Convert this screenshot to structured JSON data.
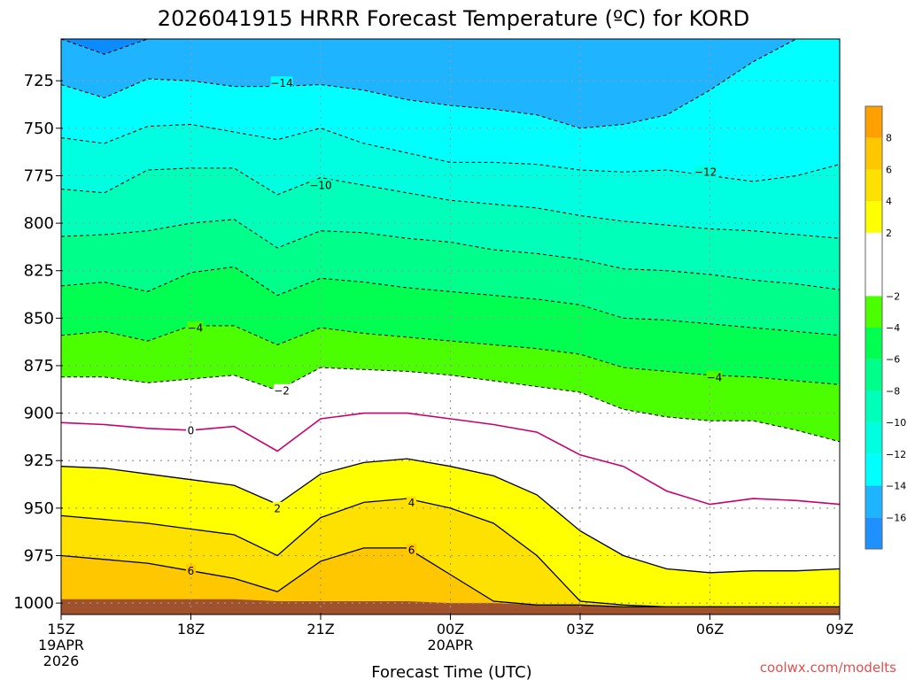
{
  "chart_data": {
    "type": "contour",
    "title": "2026041915 HRRR Forecast Temperature (ºC) for KORD",
    "xlabel": "Forecast Time (UTC)",
    "credit": "coolwx.com/modelts",
    "y_ticks": [
      "725",
      "750",
      "775",
      "800",
      "825",
      "850",
      "875",
      "900",
      "925",
      "950",
      "975",
      "1000"
    ],
    "y_values": [
      725,
      750,
      775,
      800,
      825,
      850,
      875,
      900,
      925,
      950,
      975,
      1000
    ],
    "ylim": [
      1006,
      703
    ],
    "x_ticks": [
      {
        "hour": 0,
        "lines": [
          "15Z",
          "19APR",
          "2026"
        ]
      },
      {
        "hour": 3,
        "lines": [
          "18Z"
        ]
      },
      {
        "hour": 6,
        "lines": [
          "21Z"
        ]
      },
      {
        "hour": 9,
        "lines": [
          "00Z",
          "20APR"
        ]
      },
      {
        "hour": 12,
        "lines": [
          "03Z"
        ]
      },
      {
        "hour": 15,
        "lines": [
          "06Z"
        ]
      },
      {
        "hour": 18,
        "lines": [
          "09Z"
        ]
      }
    ],
    "xlim": [
      0,
      18
    ],
    "x_hours": [
      0,
      1,
      2,
      3,
      4,
      5,
      6,
      7,
      8,
      9,
      10,
      11,
      12,
      13,
      14,
      15,
      16,
      17,
      18
    ],
    "ground_pressure": [
      998,
      998,
      998,
      998,
      998,
      999,
      999,
      999,
      999,
      1000,
      1000,
      1001,
      1001,
      1002,
      1002,
      1002,
      1002,
      1002,
      1002
    ],
    "isotherms": [
      {
        "value": -16,
        "p": [
          703,
          711,
          703,
          703,
          703,
          703,
          703,
          703,
          703,
          703,
          703,
          703,
          703,
          703,
          703,
          703,
          703,
          703,
          703
        ]
      },
      {
        "value": -14,
        "p": [
          727,
          734,
          724,
          725,
          728,
          728,
          727,
          730,
          735,
          738,
          740,
          743,
          750,
          748,
          743,
          730,
          715,
          703,
          703
        ]
      },
      {
        "value": -12,
        "p": [
          755,
          758,
          749,
          748,
          752,
          756,
          750,
          758,
          763,
          768,
          768,
          769,
          772,
          773,
          772,
          775,
          778,
          775,
          769
        ]
      },
      {
        "value": -10,
        "p": [
          782,
          784,
          772,
          771,
          771,
          785,
          776,
          780,
          784,
          788,
          790,
          792,
          796,
          799,
          801,
          803,
          804,
          806,
          808
        ]
      },
      {
        "value": -8,
        "p": [
          807,
          806,
          804,
          800,
          798,
          813,
          804,
          805,
          808,
          810,
          814,
          816,
          819,
          824,
          825,
          827,
          830,
          832,
          835
        ]
      },
      {
        "value": -6,
        "p": [
          833,
          831,
          836,
          826,
          823,
          838,
          829,
          831,
          834,
          836,
          838,
          840,
          843,
          850,
          851,
          853,
          855,
          857,
          859
        ]
      },
      {
        "value": -4,
        "p": [
          859,
          857,
          862,
          854,
          854,
          864,
          855,
          858,
          860,
          862,
          864,
          866,
          869,
          876,
          878,
          880,
          881,
          883,
          885
        ]
      },
      {
        "value": -2,
        "p": [
          881,
          881,
          884,
          882,
          880,
          888,
          876,
          877,
          878,
          880,
          883,
          886,
          889,
          898,
          902,
          904,
          904,
          909,
          915
        ]
      },
      {
        "value": 0,
        "p": [
          905,
          906,
          908,
          909,
          907,
          920,
          903,
          900,
          900,
          903,
          906,
          910,
          922,
          928,
          941,
          948,
          945,
          946,
          948
        ]
      },
      {
        "value": 2,
        "p": [
          928,
          929,
          932,
          935,
          938,
          948,
          932,
          926,
          924,
          928,
          933,
          943,
          962,
          975,
          982,
          984,
          983,
          983,
          982
        ]
      },
      {
        "value": 4,
        "p": [
          954,
          956,
          958,
          961,
          964,
          975,
          955,
          947,
          945,
          950,
          958,
          975,
          999,
          1001,
          1002,
          1002,
          1002,
          1002,
          1002
        ]
      },
      {
        "value": 6,
        "p": [
          975,
          977,
          979,
          983,
          987,
          994,
          978,
          971,
          971,
          985,
          999,
          1001,
          1001,
          1002,
          1002,
          1002,
          1002,
          1002,
          1002
        ]
      },
      {
        "value": 8,
        "p": [
          1006,
          1006,
          1006,
          1006,
          1006,
          1006,
          1006,
          1006,
          1006,
          1006,
          1006,
          1006,
          1006,
          1006,
          1006,
          1006,
          1006,
          1006,
          1006
        ]
      }
    ],
    "contour_labels": [
      {
        "text": "−14",
        "hour": 5.1,
        "p": 726
      },
      {
        "text": "−10",
        "hour": 6.0,
        "p": 780
      },
      {
        "text": "−12",
        "hour": 14.9,
        "p": 773
      },
      {
        "text": "−4",
        "hour": 3.1,
        "p": 855
      },
      {
        "text": "−2",
        "hour": 5.1,
        "p": 888
      },
      {
        "text": "−4",
        "hour": 15.1,
        "p": 881
      },
      {
        "text": "0",
        "hour": 3.0,
        "p": 909
      },
      {
        "text": "2",
        "hour": 5.0,
        "p": 950
      },
      {
        "text": "4",
        "hour": 8.1,
        "p": 947
      },
      {
        "text": "6",
        "hour": 8.1,
        "p": 972
      },
      {
        "text": "6",
        "hour": 3.0,
        "p": 983
      }
    ],
    "colorbar": {
      "bands": [
        {
          "from": -18,
          "to": -16,
          "color": "#1e90ff"
        },
        {
          "from": -16,
          "to": -14,
          "color": "#1eb4ff"
        },
        {
          "from": -14,
          "to": -12,
          "color": "#00ffff"
        },
        {
          "from": -12,
          "to": -10,
          "color": "#00ffe0"
        },
        {
          "from": -10,
          "to": -8,
          "color": "#00ffb8"
        },
        {
          "from": -8,
          "to": -6,
          "color": "#00ff8a"
        },
        {
          "from": -6,
          "to": -4,
          "color": "#00ff50"
        },
        {
          "from": -4,
          "to": -2,
          "color": "#4cff00"
        },
        {
          "from": -2,
          "to": 2,
          "color": "#ffffff"
        },
        {
          "from": 2,
          "to": 4,
          "color": "#ffff00"
        },
        {
          "from": 4,
          "to": 6,
          "color": "#ffe100"
        },
        {
          "from": 6,
          "to": 8,
          "color": "#ffc700"
        },
        {
          "from": 8,
          "to": 10,
          "color": "#ffa000"
        }
      ],
      "labels": [
        "8",
        "6",
        "4",
        "2",
        "−2",
        "−4",
        "−6",
        "−8",
        "−10",
        "−12",
        "−14",
        "−16"
      ],
      "label_values": [
        8,
        6,
        4,
        2,
        -2,
        -4,
        -6,
        -8,
        -10,
        -12,
        -14,
        -16
      ]
    },
    "colors": {
      "ground": "#a0522d",
      "freezing_line": "#c8006e",
      "top_band": "#0a8cff",
      "grid": "#999999"
    }
  }
}
